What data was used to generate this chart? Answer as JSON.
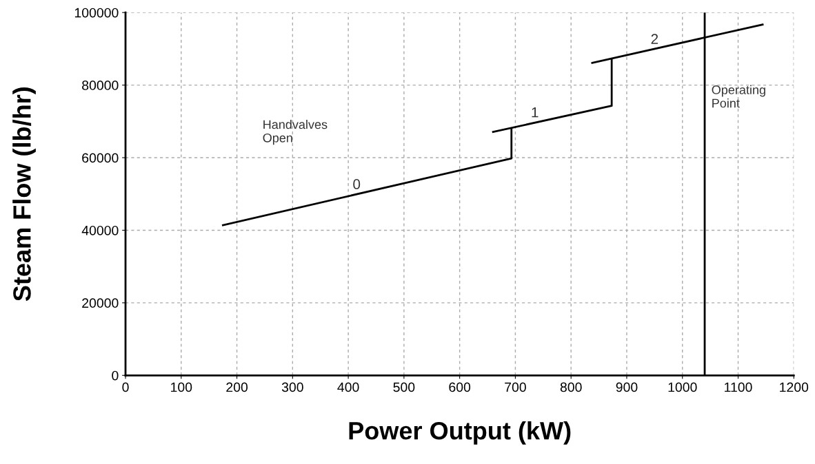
{
  "chart_data": {
    "type": "line",
    "xlabel": "Power Output (kW)",
    "ylabel": "Steam Flow (lb/hr)",
    "series": [
      {
        "color": "#000000",
        "x": [
          175,
          693,
          693
        ],
        "values": [
          41400,
          59800,
          68000
        ]
      },
      {
        "color": "#000000",
        "x": [
          660,
          873,
          873
        ],
        "values": [
          67100,
          74300,
          87200
        ]
      },
      {
        "color": "#000000",
        "x": [
          838,
          1144
        ],
        "values": [
          86100,
          96700
        ]
      }
    ],
    "xlim": [
      0,
      1200
    ],
    "xticks": [
      0,
      100,
      200,
      300,
      400,
      500,
      600,
      700,
      800,
      900,
      1000,
      1100,
      1200
    ],
    "ylim": [
      0,
      100000
    ],
    "yticks": [
      0,
      20000,
      40000,
      60000,
      80000,
      100000
    ],
    "grid": true,
    "line_style": "solid",
    "marker": "none",
    "ref_lines": [
      {
        "axis": "x",
        "value": 1040,
        "label": "Operating\nPoint",
        "color": "#000000"
      }
    ],
    "annotations": [
      {
        "text": "0",
        "x": 415,
        "y": 50000
      },
      {
        "text": "1",
        "x": 735,
        "y": 69800
      },
      {
        "text": "2",
        "x": 950,
        "y": 90000
      },
      "Handvalves\nOpen"
    ]
  }
}
